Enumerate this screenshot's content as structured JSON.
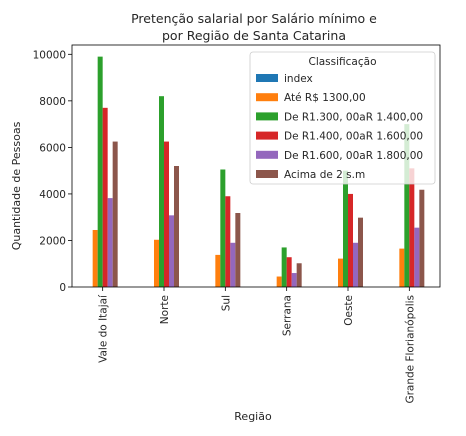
{
  "chart_data": {
    "type": "bar",
    "title_lines": [
      "Pretenção salarial por Salário mínimo e",
      "por Região de Santa Catarina"
    ],
    "xlabel": "Região",
    "ylabel": "Quantidade de Pessoas",
    "ylim": [
      0,
      10400
    ],
    "yticks": [
      0,
      2000,
      4000,
      6000,
      8000,
      10000
    ],
    "grid": false,
    "legend_position": "top-right",
    "legend_title": "Classificação",
    "categories": [
      "Vale do Itajaí",
      "Norte",
      "Sul",
      "Serrana",
      "Oeste",
      "Grande Florianópolis"
    ],
    "series": [
      {
        "name": "index",
        "color": "#1f77b4",
        "values": [
          0,
          0,
          0,
          0,
          0,
          0
        ]
      },
      {
        "name": "Até R$ 1300,00",
        "color": "#ff7f0e",
        "values": [
          2450,
          2030,
          1380,
          450,
          1220,
          1650
        ]
      },
      {
        "name": "De R1.300, 00aR 1.400,00",
        "color": "#2ca02c",
        "values": [
          9900,
          8200,
          5050,
          1700,
          5000,
          7000
        ]
      },
      {
        "name": "De R1.400, 00aR 1.600,00",
        "color": "#d62728",
        "values": [
          7700,
          6250,
          3900,
          1280,
          4000,
          5100
        ]
      },
      {
        "name": "De R1.600, 00aR 1.800,00",
        "color": "#9467bd",
        "values": [
          3820,
          3080,
          1900,
          600,
          1900,
          2550
        ]
      },
      {
        "name": "Acima de 2 s.m",
        "color": "#8c564b",
        "values": [
          6250,
          5200,
          3180,
          1020,
          2980,
          4180
        ]
      }
    ]
  }
}
